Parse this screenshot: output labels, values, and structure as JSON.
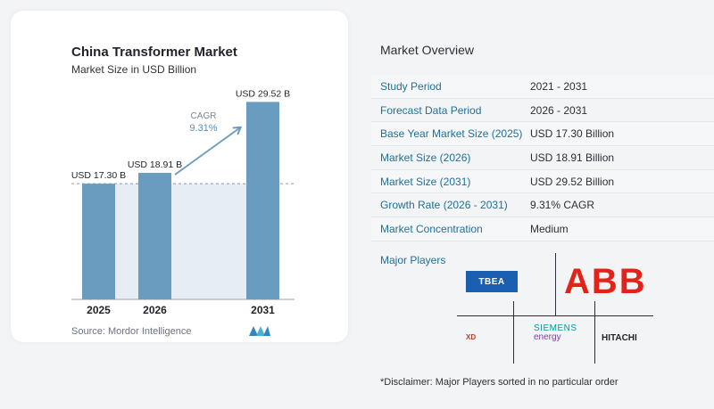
{
  "chart_data": {
    "type": "bar",
    "title": "China Transformer Market",
    "subtitle": "Market Size in USD Billion",
    "categories": [
      "2025",
      "2026",
      "2031"
    ],
    "values": [
      17.3,
      18.91,
      29.52
    ],
    "data_labels": [
      "USD 17.30 B",
      "USD 18.91 B",
      "USD 29.52 B"
    ],
    "cagr_label": "CAGR",
    "cagr_value": "9.31%",
    "bar_color": "#6a9cc0",
    "shade_color": "#e6edf4",
    "arrow_color": "#6a9cc0",
    "ylim": [
      0,
      30.5
    ],
    "grid": false
  },
  "source": "Source:  Mordor Intelligence",
  "overview": {
    "title": "Market Overview",
    "rows": [
      {
        "label": "Study Period",
        "value": "2021 - 2031"
      },
      {
        "label": "Forecast Data Period",
        "value": "2026 - 2031"
      },
      {
        "label": "Base Year Market Size (2025)",
        "value": "USD 17.30 Billion"
      },
      {
        "label": "Market Size (2026)",
        "value": "USD 18.91 Billion"
      },
      {
        "label": "Market Size (2031)",
        "value": "USD 29.52 Billion"
      },
      {
        "label": "Growth Rate (2026 - 2031)",
        "value": "9.31% CAGR"
      },
      {
        "label": "Market Concentration",
        "value": "Medium"
      }
    ],
    "major_players_label": "Major Players"
  },
  "players": {
    "tbea": "TBEA",
    "abb": "ABB",
    "xd": "XD",
    "siemens_line1": "SIEMENS",
    "siemens_line2": "energy",
    "hitachi": "HITACHI"
  },
  "disclaimer": "*Disclaimer: Major Players sorted in no particular order"
}
